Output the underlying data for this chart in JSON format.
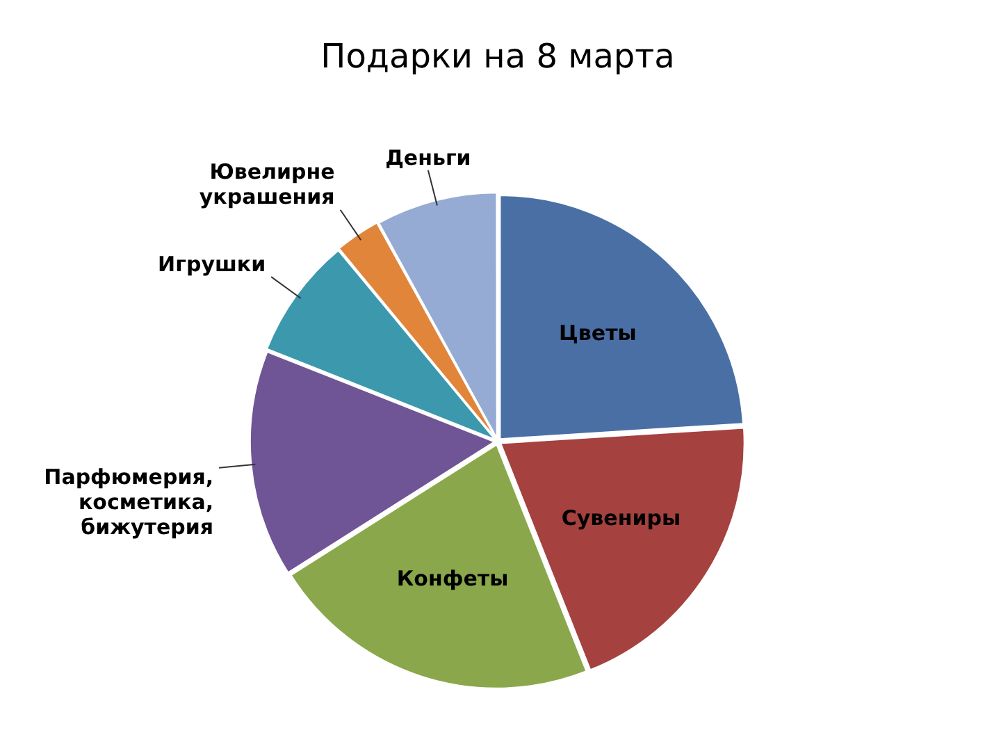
{
  "chart_data": {
    "type": "pie",
    "title": "Подарки на 8 марта",
    "categories": [
      "Цветы",
      "Сувениры",
      "Конфеты",
      "Парфюмерия, косметика, бижутерия",
      "Игрушки",
      "Ювелирне украшения",
      "Деньги"
    ],
    "values": [
      24,
      20,
      22,
      15,
      8,
      3,
      8
    ],
    "colors": [
      "#4a6fa5",
      "#a5413f",
      "#8aa84b",
      "#6f5595",
      "#3c98ad",
      "#e0853a",
      "#95abd3"
    ],
    "legend": false
  }
}
